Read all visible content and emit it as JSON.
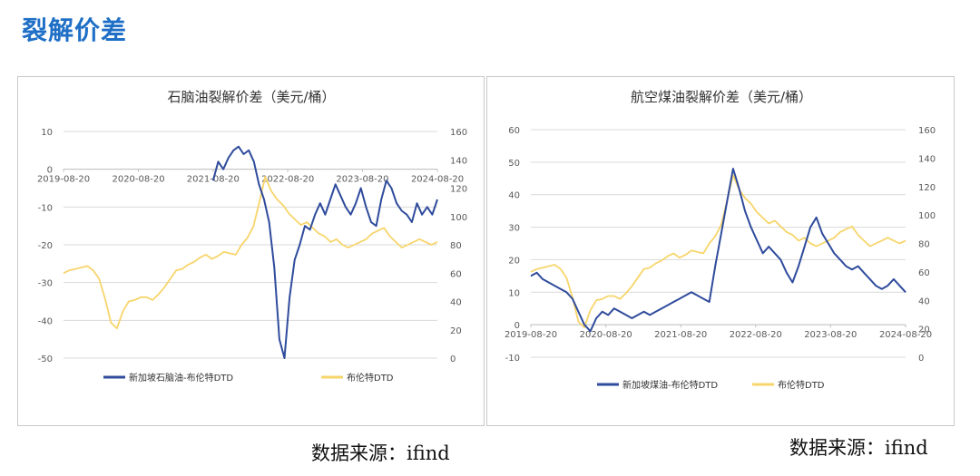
{
  "page": {
    "title": "裂解价差",
    "colors": {
      "title": "#1f6fc6",
      "spread": "#2f4b9c",
      "brent": "#f7d56b",
      "gridline": "#d9d9d9"
    }
  },
  "sources": {
    "left": "数据来源：ifind",
    "right": "数据来源：ifind"
  },
  "chart_data": [
    {
      "type": "line",
      "title": "石脑油裂解价差（美元/桶）",
      "x_ticks": [
        "2019-08-20",
        "2020-08-20",
        "2021-08-20",
        "2022-08-20",
        "2023-08-20",
        "2024-08-20"
      ],
      "x_range": [
        "2019-08-20",
        "2024-08-20"
      ],
      "y_left": {
        "range": [
          -50,
          10
        ],
        "ticks": [
          "10",
          "0",
          "-10",
          "-20",
          "-30",
          "-40",
          "-50"
        ]
      },
      "y_right": {
        "range": [
          0,
          160
        ],
        "ticks": [
          "160",
          "140",
          "120",
          "100",
          "80",
          "60",
          "40",
          "20",
          "0"
        ]
      },
      "grid": true,
      "legend": "bottom",
      "series": [
        {
          "name": "新加坡石脑油-布伦特DTD",
          "axis": "left",
          "color": "#2f4b9c",
          "start": "2021-08-20",
          "values": [
            -3,
            2,
            0,
            3,
            5,
            6,
            4,
            5,
            2,
            -4,
            -8,
            -14,
            -26,
            -45,
            -50,
            -34,
            -24,
            -20,
            -15,
            -16,
            -12,
            -9,
            -12,
            -8,
            -4,
            -7,
            -10,
            -12,
            -9,
            -5,
            -10,
            -14,
            -15,
            -8,
            -3,
            -5,
            -9,
            -11,
            -12,
            -14,
            -9,
            -12,
            -10,
            -12,
            -8
          ]
        },
        {
          "name": "布伦特DTD",
          "axis": "right",
          "color": "#f7d56b",
          "start": "2019-08-20",
          "values": [
            60,
            62,
            63,
            64,
            65,
            62,
            56,
            42,
            25,
            21,
            33,
            40,
            41,
            43,
            43,
            41,
            45,
            50,
            56,
            62,
            63,
            66,
            68,
            71,
            73,
            70,
            72,
            75,
            74,
            73,
            80,
            85,
            93,
            110,
            128,
            118,
            112,
            108,
            102,
            98,
            94,
            96,
            92,
            88,
            86,
            82,
            84,
            80,
            78,
            80,
            82,
            84,
            88,
            90,
            92,
            86,
            82,
            78,
            80,
            82,
            84,
            82,
            80,
            82
          ]
        }
      ]
    },
    {
      "type": "line",
      "title": "航空煤油裂解价差（美元/桶）",
      "x_ticks": [
        "2019-08-20",
        "2020-08-20",
        "2021-08-20",
        "2022-08-20",
        "2023-08-20",
        "2024-08-20"
      ],
      "x_range": [
        "2019-08-20",
        "2024-08-20"
      ],
      "y_left": {
        "range": [
          -10,
          60
        ],
        "ticks": [
          "60",
          "50",
          "40",
          "30",
          "20",
          "10",
          "0",
          "-10"
        ]
      },
      "y_right": {
        "range": [
          0,
          160
        ],
        "ticks": [
          "160",
          "140",
          "120",
          "100",
          "80",
          "60",
          "40",
          "20",
          "0"
        ]
      },
      "grid": true,
      "legend": "bottom",
      "series": [
        {
          "name": "新加坡煤油-布伦特DTD",
          "axis": "left",
          "color": "#2f4b9c",
          "start": "2019-08-20",
          "values": [
            15,
            16,
            14,
            13,
            12,
            11,
            10,
            8,
            4,
            0,
            -2,
            2,
            4,
            3,
            5,
            4,
            3,
            2,
            3,
            4,
            3,
            4,
            5,
            6,
            7,
            8,
            9,
            10,
            9,
            8,
            7,
            18,
            28,
            38,
            48,
            42,
            35,
            30,
            26,
            22,
            24,
            22,
            20,
            16,
            13,
            18,
            24,
            30,
            33,
            28,
            25,
            22,
            20,
            18,
            17,
            18,
            16,
            14,
            12,
            11,
            12,
            14,
            12,
            10
          ]
        },
        {
          "name": "布伦特DTD",
          "axis": "right",
          "color": "#f7d56b",
          "start": "2019-08-20",
          "values": [
            60,
            62,
            63,
            64,
            65,
            62,
            56,
            42,
            25,
            21,
            33,
            40,
            41,
            43,
            43,
            41,
            45,
            50,
            56,
            62,
            63,
            66,
            68,
            71,
            73,
            70,
            72,
            75,
            74,
            73,
            80,
            85,
            93,
            110,
            128,
            118,
            112,
            108,
            102,
            98,
            94,
            96,
            92,
            88,
            86,
            82,
            84,
            80,
            78,
            80,
            82,
            84,
            88,
            90,
            92,
            86,
            82,
            78,
            80,
            82,
            84,
            82,
            80,
            82
          ]
        }
      ]
    }
  ]
}
